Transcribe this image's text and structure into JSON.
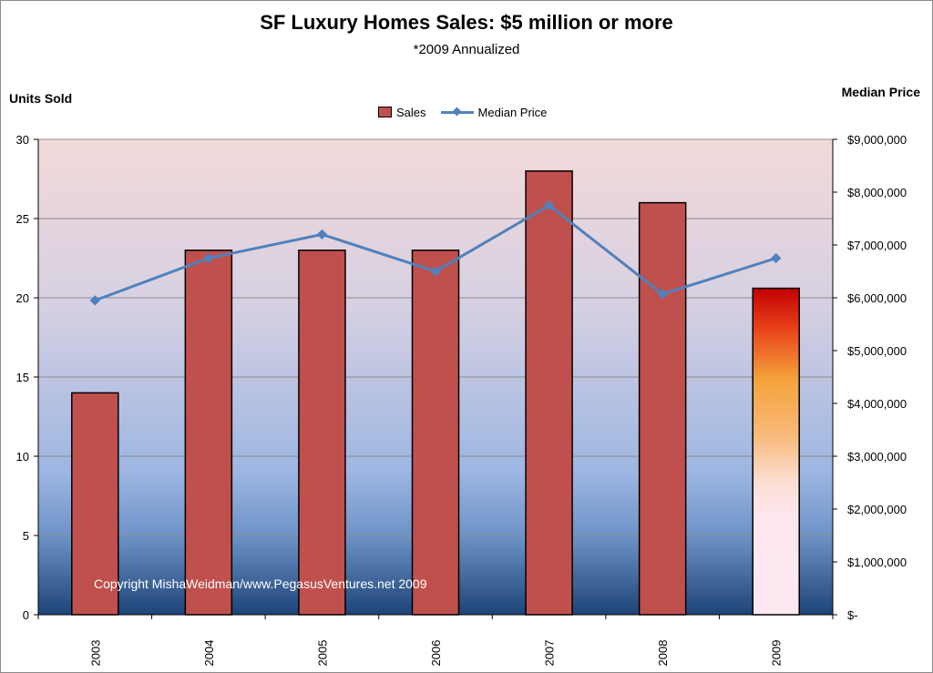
{
  "chart_data": {
    "type": "bar",
    "title": "SF Luxury Homes Sales:  $5 million or more",
    "subtitle": "*2009 Annualized",
    "ylabel": "Units Sold",
    "y2label": "Median Price",
    "categories": [
      "2003",
      "2004",
      "2005",
      "2006",
      "2007",
      "2008",
      "2009"
    ],
    "series": [
      {
        "name": "Sales",
        "type": "bar",
        "axis": "left",
        "values": [
          14,
          23,
          23,
          23,
          28,
          26,
          20.6
        ]
      },
      {
        "name": "Median Price",
        "type": "line",
        "axis": "right",
        "values": [
          5950000,
          6750000,
          7200000,
          6500000,
          7750000,
          6070000,
          6750000
        ]
      }
    ],
    "ylim": [
      0,
      30
    ],
    "y2lim": [
      0,
      9000000
    ],
    "yticks": [
      "0",
      "5",
      "10",
      "15",
      "20",
      "25",
      "30"
    ],
    "y2ticks": [
      "$-",
      "$1,000,000",
      "$2,000,000",
      "$3,000,000",
      "$4,000,000",
      "$5,000,000",
      "$6,000,000",
      "$7,000,000",
      "$8,000,000",
      "$9,000,000"
    ],
    "grid": true,
    "legend_position": "top-center",
    "annotation": "Copyright MishaWeidman/www.PegasusVentures.net 2009",
    "colors": {
      "bar": "#c0504d",
      "line": "#4f81bd"
    }
  }
}
